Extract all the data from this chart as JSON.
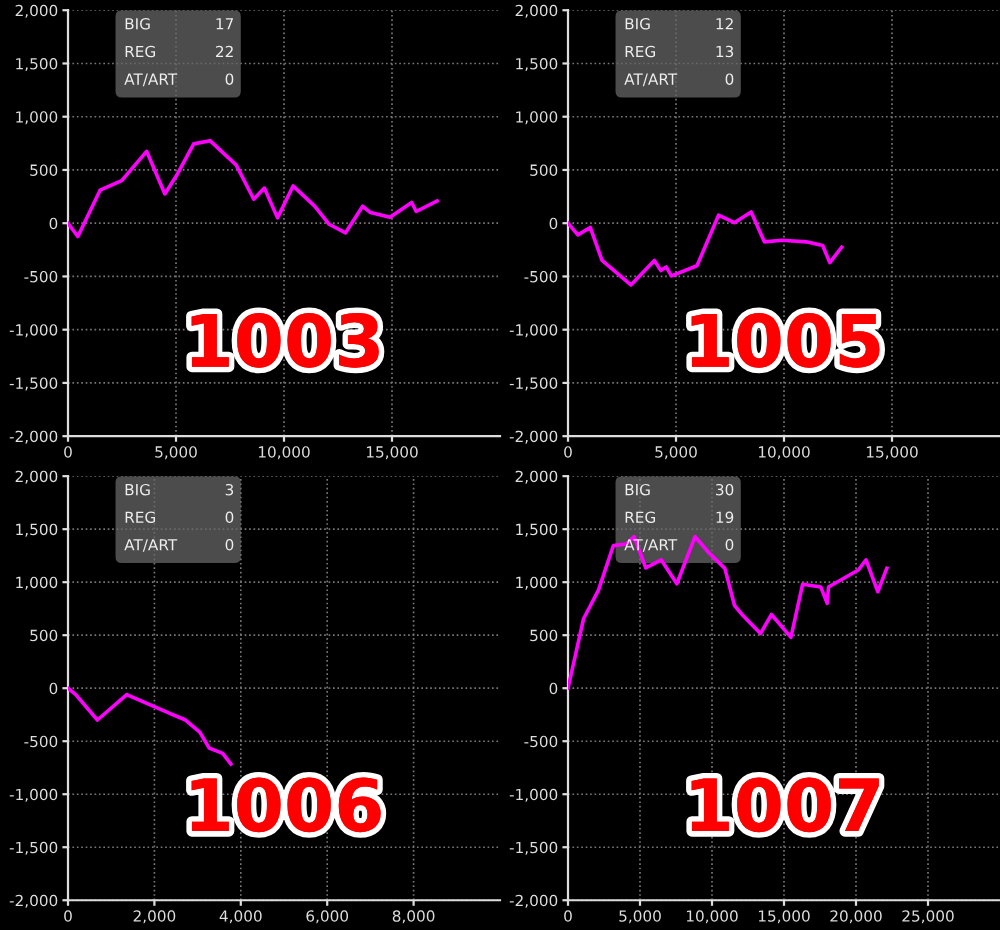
{
  "chart_data": [
    {
      "type": "line",
      "color": "#ff00ff",
      "grid": true,
      "x": [
        0,
        455,
        1485,
        2485,
        3640,
        4485,
        5060,
        5820,
        6575,
        7790,
        8600,
        9090,
        9700,
        10420,
        11420,
        12090,
        12850,
        13640,
        14000,
        14910,
        15910,
        16120,
        17090
      ],
      "values": [
        0,
        -125,
        310,
        400,
        675,
        275,
        460,
        745,
        775,
        545,
        225,
        330,
        50,
        350,
        160,
        -10,
        -90,
        160,
        100,
        55,
        195,
        110,
        210
      ],
      "xlim": [
        0,
        20000
      ],
      "xticks": [
        0,
        {
          "value": 5000,
          "label": "5,000"
        },
        {
          "value": 10000,
          "label": "10,000"
        },
        {
          "value": 15000,
          "label": "15,000"
        }
      ],
      "ylim": [
        -2000,
        2000
      ],
      "yticks": [
        {
          "value": -2000,
          "label": "-2,000"
        },
        {
          "value": -1500,
          "label": "-1,500"
        },
        {
          "value": -1000,
          "label": "-1,000"
        },
        -500,
        0,
        500,
        {
          "value": 1000,
          "label": "1,000"
        },
        {
          "value": 1500,
          "label": "1,500"
        },
        {
          "value": 2000,
          "label": "2,000"
        }
      ],
      "annotations": [
        "BIG",
        "17",
        "REG",
        "22",
        "AT/ART",
        "0",
        "1003"
      ]
    },
    {
      "type": "line",
      "color": "#ff00ff",
      "grid": true,
      "x": [
        0,
        455,
        1030,
        1575,
        2910,
        4000,
        4300,
        4545,
        4790,
        5970,
        6970,
        7700,
        8480,
        9090,
        9910,
        11030,
        11790,
        12120,
        12670
      ],
      "values": [
        0,
        -110,
        -40,
        -350,
        -580,
        -350,
        -445,
        -410,
        -495,
        -400,
        75,
        5,
        105,
        -175,
        -160,
        -175,
        -210,
        -370,
        -225
      ],
      "xlim": [
        0,
        20000
      ],
      "xticks": [
        0,
        {
          "value": 5000,
          "label": "5,000"
        },
        {
          "value": 10000,
          "label": "10,000"
        },
        {
          "value": 15000,
          "label": "15,000"
        }
      ],
      "ylim": [
        -2000,
        2000
      ],
      "yticks": [
        {
          "value": -2000,
          "label": "-2,000"
        },
        {
          "value": -1500,
          "label": "-1,500"
        },
        {
          "value": -1000,
          "label": "-1,000"
        },
        -500,
        0,
        500,
        {
          "value": 1000,
          "label": "1,000"
        },
        {
          "value": 1500,
          "label": "1,500"
        },
        {
          "value": 2000,
          "label": "2,000"
        }
      ],
      "annotations": [
        "BIG",
        "12",
        "REG",
        "13",
        "AT/ART",
        "0",
        "1005"
      ]
    },
    {
      "type": "line",
      "color": "#ff00ff",
      "grid": true,
      "x": [
        0,
        180,
        680,
        1360,
        2370,
        2720,
        3050,
        3270,
        3580,
        3770
      ],
      "values": [
        0,
        -60,
        -300,
        -60,
        -240,
        -300,
        -415,
        -565,
        -615,
        -715
      ],
      "xlim": [
        0,
        10000
      ],
      "xticks": [
        0,
        {
          "value": 2000,
          "label": "2,000"
        },
        {
          "value": 4000,
          "label": "4,000"
        },
        {
          "value": 6000,
          "label": "6,000"
        },
        {
          "value": 8000,
          "label": "8,000"
        }
      ],
      "ylim": [
        -2000,
        2000
      ],
      "yticks": [
        {
          "value": -2000,
          "label": "-2,000"
        },
        {
          "value": -1500,
          "label": "-1,500"
        },
        {
          "value": -1000,
          "label": "-1,000"
        },
        -500,
        0,
        500,
        {
          "value": 1000,
          "label": "1,000"
        },
        {
          "value": 1500,
          "label": "1,500"
        },
        {
          "value": 2000,
          "label": "2,000"
        }
      ],
      "annotations": [
        "BIG",
        "3",
        "REG",
        "0",
        "AT/ART",
        "0",
        "1006"
      ]
    },
    {
      "type": "line",
      "color": "#ff00ff",
      "grid": true,
      "x": [
        0,
        1080,
        2115,
        3150,
        4050,
        4590,
        5400,
        6480,
        7560,
        8820,
        9765,
        10890,
        11565,
        12150,
        13365,
        14130,
        15480,
        16290,
        17550,
        18000,
        18090,
        20160,
        20700,
        21510,
        22140
      ],
      "values": [
        0,
        655,
        925,
        1345,
        1360,
        1430,
        1135,
        1210,
        985,
        1430,
        1280,
        1130,
        780,
        685,
        515,
        695,
        480,
        980,
        955,
        800,
        955,
        1115,
        1210,
        910,
        1130
      ],
      "xlim": [
        0,
        30000
      ],
      "xticks": [
        0,
        {
          "value": 5000,
          "label": "5,000"
        },
        {
          "value": 10000,
          "label": "10,000"
        },
        {
          "value": 15000,
          "label": "15,000"
        },
        {
          "value": 20000,
          "label": "20,000"
        },
        {
          "value": 25000,
          "label": "25,000"
        }
      ],
      "ylim": [
        -2000,
        2000
      ],
      "yticks": [
        {
          "value": -2000,
          "label": "-2,000"
        },
        {
          "value": -1500,
          "label": "-1,500"
        },
        {
          "value": -1000,
          "label": "-1,000"
        },
        -500,
        0,
        500,
        {
          "value": 1000,
          "label": "1,000"
        },
        {
          "value": 1500,
          "label": "1,500"
        },
        {
          "value": 2000,
          "label": "2,000"
        }
      ],
      "annotations": [
        "BIG",
        "30",
        "REG",
        "19",
        "AT/ART",
        "0",
        "1007"
      ]
    }
  ]
}
